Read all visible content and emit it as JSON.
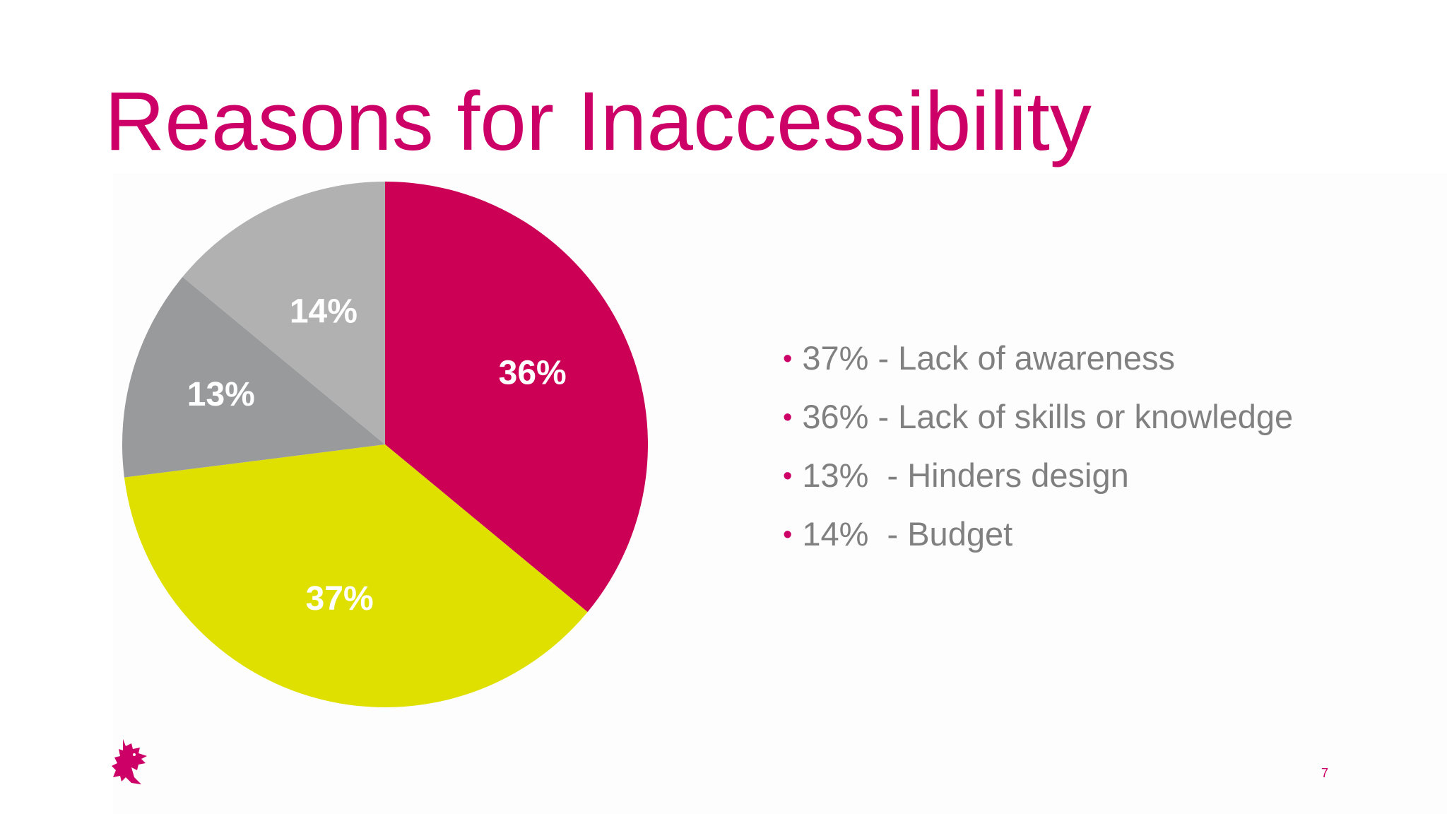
{
  "slide": {
    "title": "Reasons for Inaccessibility",
    "page_number": "7",
    "logo": "dragon-logo",
    "accent_color": "#cc0066"
  },
  "legend": {
    "bullet": "•",
    "items": [
      "37% - Lack of awareness",
      "36% - Lack of skills or knowledge",
      "13%  - Hinders design",
      "14%  - Budget"
    ]
  },
  "chart_data": {
    "type": "pie",
    "title": "",
    "start": "12 o'clock, clockwise",
    "slices": [
      {
        "label": "36%",
        "value": 36,
        "color": "#cc0055"
      },
      {
        "label": "37%",
        "value": 37,
        "color": "#dfe000"
      },
      {
        "label": "13%",
        "value": 13,
        "color": "#999a9c"
      },
      {
        "label": "14%",
        "value": 14,
        "color": "#b1b1b1"
      }
    ]
  }
}
